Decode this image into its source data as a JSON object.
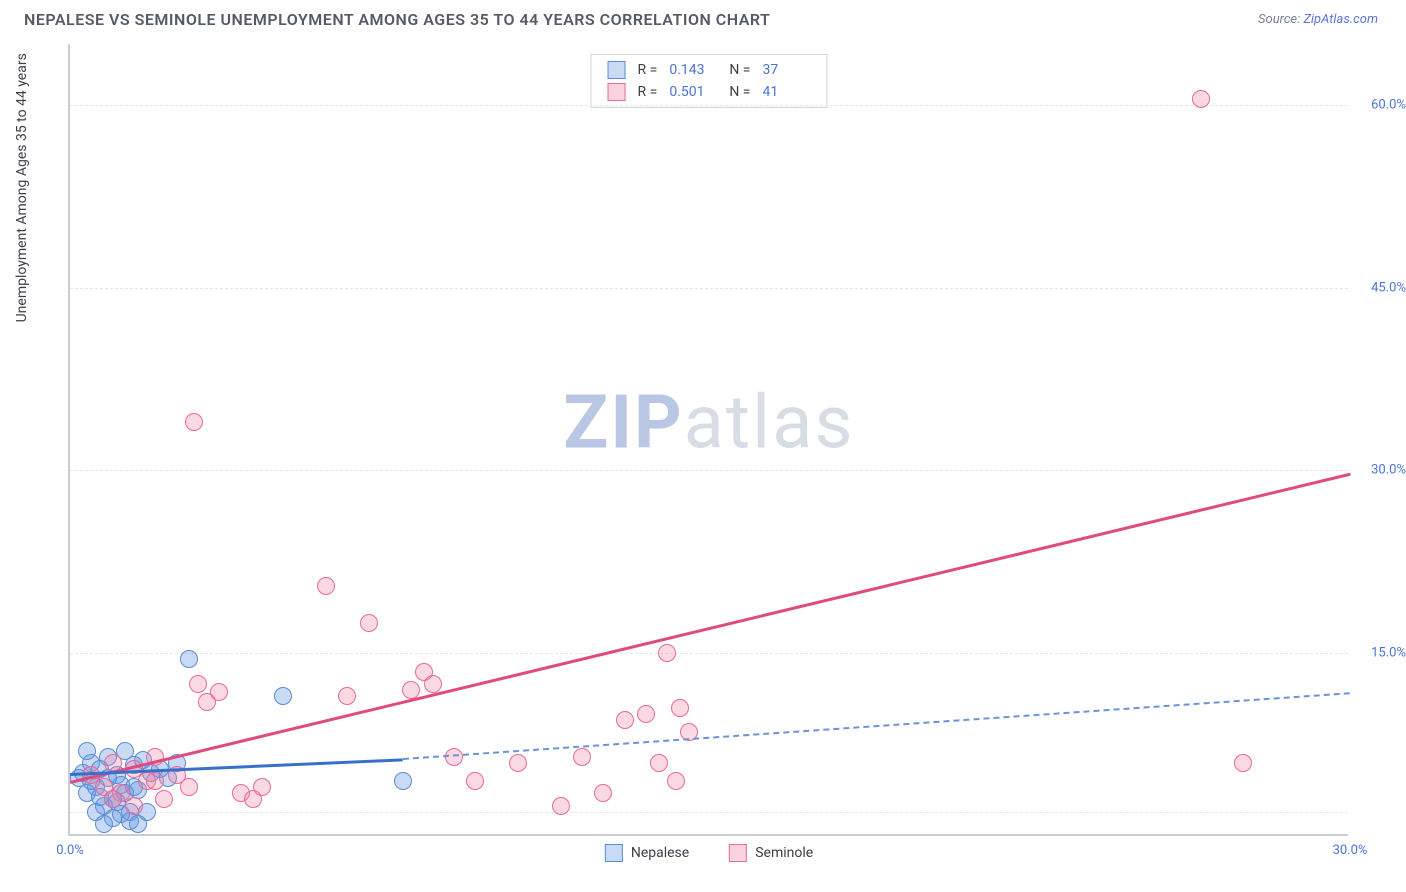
{
  "header": {
    "title": "NEPALESE VS SEMINOLE UNEMPLOYMENT AMONG AGES 35 TO 44 YEARS CORRELATION CHART",
    "source_prefix": "Source: ",
    "source_link": "ZipAtlas.com"
  },
  "chart": {
    "type": "scatter",
    "ylabel": "Unemployment Among Ages 35 to 44 years",
    "xlim": [
      0,
      30
    ],
    "ylim": [
      0,
      65
    ],
    "xticks": [
      {
        "v": 0,
        "label": "0.0%"
      },
      {
        "v": 30,
        "label": "30.0%"
      }
    ],
    "yticks": [
      {
        "v": 15,
        "label": "15.0%"
      },
      {
        "v": 30,
        "label": "30.0%"
      },
      {
        "v": 45,
        "label": "45.0%"
      },
      {
        "v": 60,
        "label": "60.0%"
      }
    ],
    "gridlines_y": [
      2,
      15,
      30,
      45,
      60
    ],
    "background_color": "#ffffff",
    "grid_color": "#e3e6ec",
    "axis_color": "#c9cdd6",
    "watermark": {
      "bold": "ZIP",
      "rest": "atlas"
    },
    "series": [
      {
        "name": "Nepalese",
        "color_fill": "rgba(99,150,226,0.35)",
        "color_stroke": "#5a8cd8",
        "class": "blue",
        "R": "0.143",
        "N": "37",
        "marker_radius": 9,
        "trend": {
          "x1": 0,
          "y1": 5.2,
          "x2": 7.8,
          "y2": 6.4,
          "solid_until_x": 7.8,
          "dash_to_x": 30,
          "dash_to_y": 11.8
        },
        "points": [
          [
            0.2,
            4.8
          ],
          [
            0.3,
            5.2
          ],
          [
            0.4,
            3.5
          ],
          [
            0.5,
            6.0
          ],
          [
            0.6,
            4.0
          ],
          [
            0.7,
            5.5
          ],
          [
            0.8,
            2.5
          ],
          [
            0.9,
            6.5
          ],
          [
            1.0,
            3.0
          ],
          [
            1.1,
            5.0
          ],
          [
            1.2,
            4.2
          ],
          [
            1.3,
            7.0
          ],
          [
            1.4,
            2.0
          ],
          [
            1.5,
            5.8
          ],
          [
            1.6,
            3.8
          ],
          [
            1.7,
            6.2
          ],
          [
            1.0,
            1.5
          ],
          [
            0.6,
            2.0
          ],
          [
            0.8,
            1.0
          ],
          [
            1.2,
            1.8
          ],
          [
            1.4,
            1.2
          ],
          [
            1.6,
            1.0
          ],
          [
            1.8,
            2.0
          ],
          [
            0.4,
            7.0
          ],
          [
            0.5,
            4.5
          ],
          [
            0.7,
            3.2
          ],
          [
            0.9,
            4.8
          ],
          [
            1.1,
            2.8
          ],
          [
            1.3,
            3.5
          ],
          [
            1.5,
            4.0
          ],
          [
            1.9,
            5.2
          ],
          [
            2.1,
            5.5
          ],
          [
            2.3,
            4.8
          ],
          [
            2.8,
            14.5
          ],
          [
            5.0,
            11.5
          ],
          [
            7.8,
            4.5
          ],
          [
            2.5,
            6.0
          ]
        ]
      },
      {
        "name": "Seminole",
        "color_fill": "rgba(242,130,163,0.30)",
        "color_stroke": "#e76a98",
        "class": "pink",
        "R": "0.501",
        "N": "41",
        "marker_radius": 9,
        "trend": {
          "x1": 0,
          "y1": 4.5,
          "x2": 30,
          "y2": 29.8
        },
        "points": [
          [
            0.5,
            5.0
          ],
          [
            0.8,
            4.0
          ],
          [
            1.0,
            6.0
          ],
          [
            1.2,
            3.5
          ],
          [
            1.5,
            5.5
          ],
          [
            1.8,
            4.5
          ],
          [
            2.0,
            6.5
          ],
          [
            2.2,
            3.0
          ],
          [
            2.5,
            5.0
          ],
          [
            2.8,
            4.0
          ],
          [
            3.0,
            12.5
          ],
          [
            3.2,
            11.0
          ],
          [
            3.5,
            11.8
          ],
          [
            4.0,
            3.5
          ],
          [
            4.3,
            3.0
          ],
          [
            4.5,
            4.0
          ],
          [
            2.9,
            34.0
          ],
          [
            6.0,
            20.5
          ],
          [
            6.5,
            11.5
          ],
          [
            7.0,
            17.5
          ],
          [
            8.0,
            12.0
          ],
          [
            8.3,
            13.5
          ],
          [
            8.5,
            12.5
          ],
          [
            9.0,
            6.5
          ],
          [
            9.5,
            4.5
          ],
          [
            10.5,
            6.0
          ],
          [
            11.5,
            2.5
          ],
          [
            12.0,
            6.5
          ],
          [
            12.5,
            3.5
          ],
          [
            13.0,
            9.5
          ],
          [
            13.5,
            10.0
          ],
          [
            13.8,
            6.0
          ],
          [
            14.0,
            15.0
          ],
          [
            14.2,
            4.5
          ],
          [
            14.3,
            10.5
          ],
          [
            14.5,
            8.5
          ],
          [
            26.5,
            60.5
          ],
          [
            27.5,
            6.0
          ],
          [
            1.0,
            3.0
          ],
          [
            1.5,
            2.5
          ],
          [
            2.0,
            4.5
          ]
        ]
      }
    ],
    "stat_labels": {
      "R": "R =",
      "N": "N ="
    },
    "legend_items": [
      {
        "label": "Nepalese",
        "class": "blue"
      },
      {
        "label": "Seminole",
        "class": "pink"
      }
    ]
  }
}
